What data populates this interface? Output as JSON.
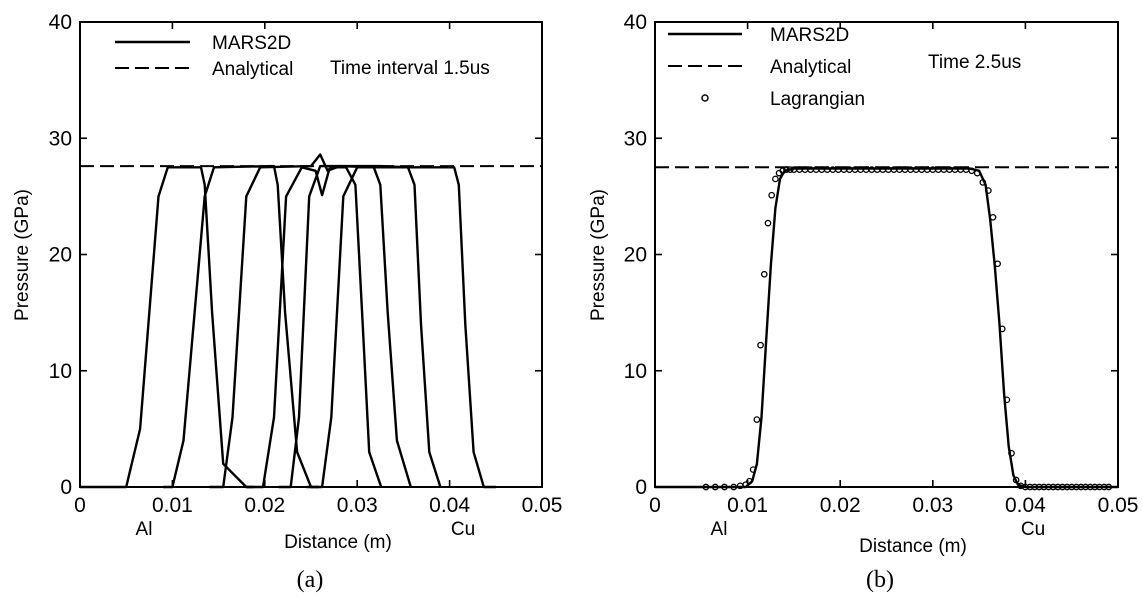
{
  "chart_data": [
    {
      "type": "line",
      "panel_label": "(a)",
      "xlabel": "Distance (m)",
      "ylabel": "Pressure (GPa)",
      "xlim": [
        0,
        0.05
      ],
      "ylim": [
        0,
        40
      ],
      "xticks": [
        "0",
        "0.01",
        "0.02",
        "0.03",
        "0.04",
        "0.05"
      ],
      "yticks": [
        "0",
        "10",
        "20",
        "30",
        "40"
      ],
      "annotations": [
        "Time interval 1.5us",
        "Al",
        "Cu"
      ],
      "legend": [
        "MARS2D",
        "Analytical"
      ],
      "series": [
        {
          "name": "Analytical",
          "style": "dashed",
          "x": [
            0,
            0.05
          ],
          "y": [
            27.6,
            27.6
          ]
        },
        {
          "name": "MARS2D",
          "style": "solid",
          "x": [
            0,
            0.005,
            0.0065,
            0.0085,
            0.0095,
            0.0131,
            0.0135,
            0.0143,
            0.0155,
            0.018,
            0.0188
          ],
          "y": [
            0,
            0,
            5,
            25,
            27.5,
            27.5,
            26,
            15,
            2,
            0,
            0
          ]
        },
        {
          "name": "MARS2D",
          "style": "solid",
          "x": [
            0.009,
            0.01,
            0.0112,
            0.0135,
            0.0145,
            0.021,
            0.0214,
            0.0222,
            0.0235,
            0.025,
            0.0258
          ],
          "y": [
            0,
            0,
            4,
            25,
            27.5,
            27.6,
            26,
            15,
            3,
            0,
            0
          ]
        },
        {
          "name": "MARS2D",
          "style": "solid",
          "x": [
            0.014,
            0.0155,
            0.0165,
            0.018,
            0.0195,
            0.025,
            0.026,
            0.0268,
            0.0278,
            0.0288,
            0.0298,
            0.0306,
            0.0313,
            0.0326
          ],
          "y": [
            0,
            0,
            6,
            25,
            27.5,
            27.6,
            28.6,
            27.2,
            27.5,
            27.5,
            26,
            14,
            3,
            0
          ]
        },
        {
          "name": "MARS2D",
          "style": "solid",
          "x": [
            0.018,
            0.0198,
            0.021,
            0.0223,
            0.024,
            0.0255,
            0.0262,
            0.027,
            0.028,
            0.0318,
            0.0325,
            0.0333,
            0.0343,
            0.0358
          ],
          "y": [
            0,
            0,
            6,
            25,
            27.5,
            27.2,
            25.1,
            27.4,
            27.6,
            27.5,
            26,
            15,
            4,
            0
          ]
        },
        {
          "name": "MARS2D",
          "style": "solid",
          "x": [
            0.0215,
            0.0228,
            0.0237,
            0.0248,
            0.026,
            0.0325,
            0.0355,
            0.0362,
            0.0369,
            0.0378,
            0.039
          ],
          "y": [
            0,
            0,
            6,
            25,
            27.6,
            27.6,
            27.5,
            26,
            14,
            3,
            0
          ]
        },
        {
          "name": "MARS2D",
          "style": "solid",
          "x": [
            0.0245,
            0.0262,
            0.0272,
            0.0285,
            0.03,
            0.0405,
            0.041,
            0.0417,
            0.0426,
            0.0437,
            0.045
          ],
          "y": [
            0,
            0,
            6,
            25,
            27.5,
            27.5,
            26,
            14,
            3,
            0,
            0
          ]
        }
      ]
    },
    {
      "type": "line",
      "panel_label": "(b)",
      "xlabel": "Distance (m)",
      "ylabel": "Pressure (GPa)",
      "xlim": [
        0,
        0.05
      ],
      "ylim": [
        0,
        40
      ],
      "xticks": [
        "0",
        "0.01",
        "0.02",
        "0.03",
        "0.04",
        "0.05"
      ],
      "yticks": [
        "0",
        "10",
        "20",
        "30",
        "40"
      ],
      "annotations": [
        "Time 2.5us",
        "Al",
        "Cu"
      ],
      "legend": [
        "MARS2D",
        "Analytical",
        "Lagrangian"
      ],
      "series": [
        {
          "name": "Analytical",
          "style": "dashed",
          "x": [
            0,
            0.05
          ],
          "y": [
            27.5,
            27.5
          ]
        },
        {
          "name": "MARS2D",
          "style": "solid",
          "x": [
            0,
            0.0098,
            0.0105,
            0.011,
            0.0115,
            0.012,
            0.0125,
            0.013,
            0.0135,
            0.014,
            0.015,
            0.016,
            0.034,
            0.035,
            0.0357,
            0.0362,
            0.0367,
            0.0372,
            0.0377,
            0.0382,
            0.0387,
            0.0392,
            0.04,
            0.05
          ],
          "y": [
            0,
            0,
            0.5,
            2,
            6,
            12.5,
            19,
            24,
            26.5,
            27.2,
            27.4,
            27.4,
            27.4,
            27.2,
            26,
            23,
            19,
            14,
            8,
            3.5,
            1,
            0.2,
            0,
            0
          ]
        },
        {
          "name": "Lagrangian",
          "style": "circle",
          "x": [
            0.0055,
            0.0065,
            0.0075,
            0.0085,
            0.0092,
            0.0098,
            0.0102,
            0.0106,
            0.011,
            0.0114,
            0.0118,
            0.0122,
            0.0126,
            0.013,
            0.0134,
            0.0138,
            0.0142,
            0.0146,
            0.015,
            0.0156,
            0.0162,
            0.0168,
            0.0174,
            0.018,
            0.0186,
            0.0192,
            0.0198,
            0.0204,
            0.021,
            0.0216,
            0.0222,
            0.0228,
            0.0234,
            0.024,
            0.0246,
            0.0252,
            0.0258,
            0.0264,
            0.027,
            0.0276,
            0.0282,
            0.0288,
            0.0294,
            0.03,
            0.0306,
            0.0312,
            0.0318,
            0.0324,
            0.033,
            0.0336,
            0.0342,
            0.0348,
            0.0354,
            0.036,
            0.0365,
            0.037,
            0.0375,
            0.038,
            0.0385,
            0.039,
            0.0395,
            0.04,
            0.0405,
            0.041,
            0.0415,
            0.042,
            0.0425,
            0.043,
            0.0435,
            0.044,
            0.0445,
            0.045,
            0.0455,
            0.046,
            0.0465,
            0.047,
            0.0475,
            0.048,
            0.0485,
            0.049
          ],
          "y": [
            0,
            0,
            0,
            0,
            0.1,
            0.2,
            0.5,
            1.5,
            5.8,
            12.2,
            18.3,
            22.7,
            25.1,
            26.5,
            27.0,
            27.2,
            27.3,
            27.3,
            27.3,
            27.3,
            27.3,
            27.3,
            27.3,
            27.3,
            27.3,
            27.3,
            27.3,
            27.3,
            27.3,
            27.3,
            27.3,
            27.3,
            27.3,
            27.3,
            27.3,
            27.3,
            27.3,
            27.3,
            27.3,
            27.3,
            27.3,
            27.3,
            27.3,
            27.3,
            27.3,
            27.3,
            27.3,
            27.3,
            27.3,
            27.3,
            27.2,
            27.0,
            26.2,
            25.5,
            23.2,
            19.2,
            13.6,
            7.5,
            2.9,
            0.6,
            0.1,
            0,
            0,
            0,
            0,
            0,
            0,
            0,
            0,
            0,
            0,
            0,
            0,
            0,
            0,
            0,
            0,
            0,
            0,
            0
          ]
        }
      ]
    }
  ]
}
